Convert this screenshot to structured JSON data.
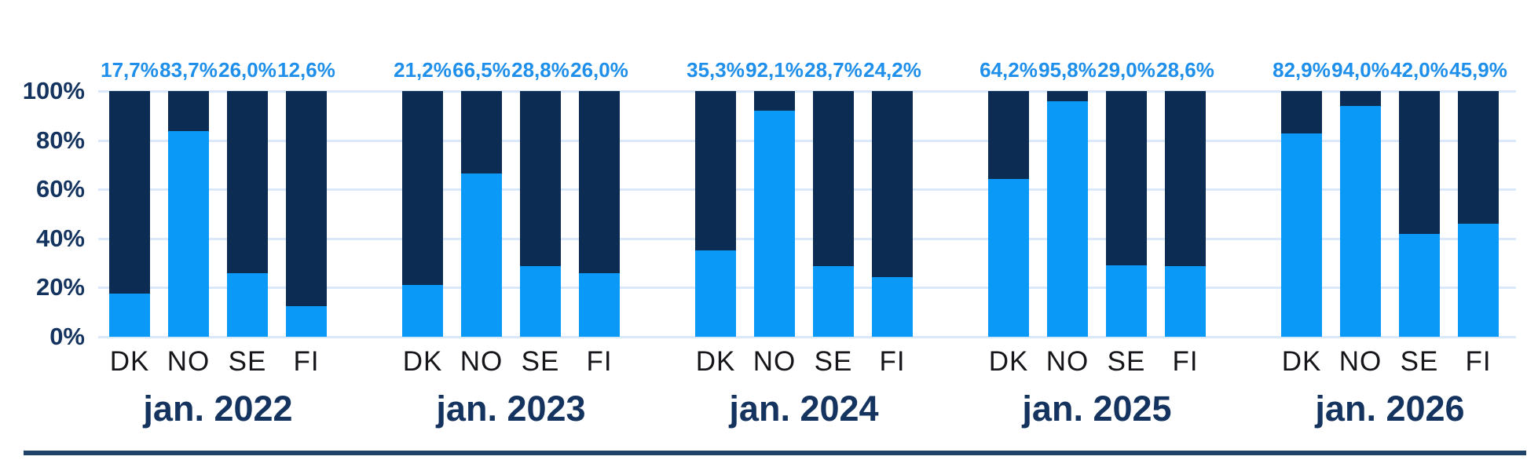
{
  "colors": {
    "bar_primary": "#0a99f7",
    "bar_remainder": "#0d2c54",
    "value_label": "#1e8fea",
    "axis_text": "#14345f",
    "category_text": "#16161a",
    "gridline": "#d9e9fb",
    "bottom_rule": "#1f4368",
    "background": "#ffffff"
  },
  "chart_data": {
    "type": "bar",
    "stacked": true,
    "unit": "%",
    "ylim": [
      0,
      100
    ],
    "grid": true,
    "legend": "none visible",
    "segment_meaning": {
      "bottom_light_blue": "labeled percentage value",
      "top_dark_navy": "remainder to 100%"
    },
    "y_axis_ticks": [
      {
        "value": 100,
        "label": "100%"
      },
      {
        "value": 80,
        "label": "80%"
      },
      {
        "value": 60,
        "label": "60%"
      },
      {
        "value": 40,
        "label": "40%"
      },
      {
        "value": 20,
        "label": "20%"
      },
      {
        "value": 0,
        "label": "0%"
      }
    ],
    "categories": [
      "DK",
      "NO",
      "SE",
      "FI"
    ],
    "groups": [
      {
        "label": "jan. 2022",
        "values": [
          17.7,
          83.7,
          26.0,
          12.6
        ],
        "value_labels": [
          "17,7%",
          "83,7%",
          "26,0%",
          "12,6%"
        ]
      },
      {
        "label": "jan. 2023",
        "values": [
          21.2,
          66.5,
          28.8,
          26.0
        ],
        "value_labels": [
          "21,2%",
          "66,5%",
          "28,8%",
          "26,0%"
        ]
      },
      {
        "label": "jan. 2024",
        "values": [
          35.3,
          92.1,
          28.7,
          24.2
        ],
        "value_labels": [
          "35,3%",
          "92,1%",
          "28,7%",
          "24,2%"
        ]
      },
      {
        "label": "jan. 2025",
        "values": [
          64.2,
          95.8,
          29.0,
          28.6
        ],
        "value_labels": [
          "64,2%",
          "95,8%",
          "29,0%",
          "28,6%"
        ]
      },
      {
        "label": "jan. 2026",
        "values": [
          82.9,
          94.0,
          42.0,
          45.9
        ],
        "value_labels": [
          "82,9%",
          "94,0%",
          "42,0%",
          "45,9%"
        ]
      }
    ]
  }
}
